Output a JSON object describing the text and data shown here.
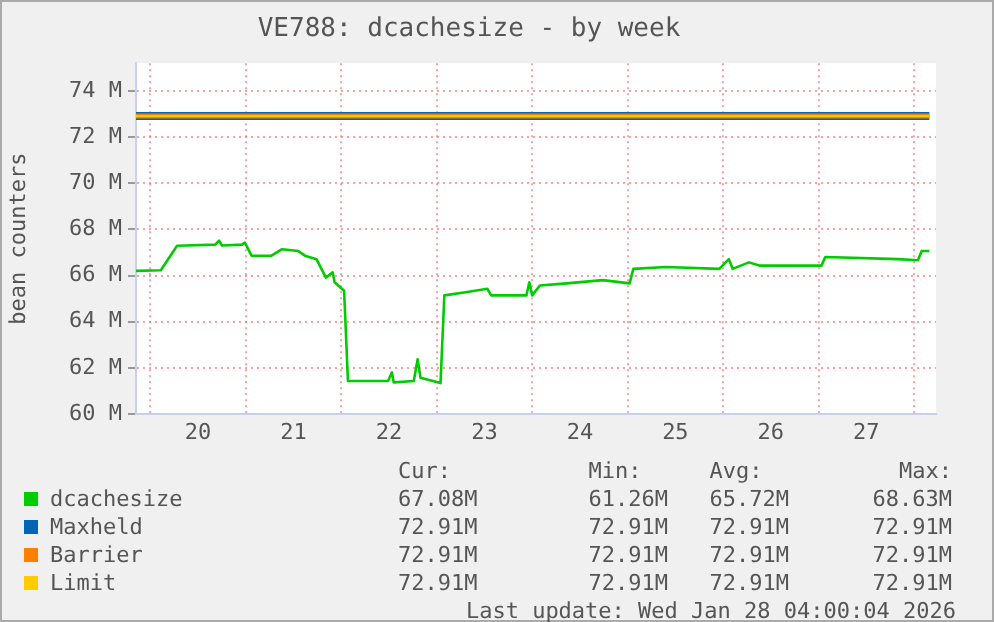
{
  "chart_data": {
    "type": "line",
    "title": "VE788: dcachesize - by week",
    "ylabel": "bean counters",
    "xlim": [
      19.85,
      28.23
    ],
    "ylim": [
      60,
      75.2
    ],
    "xticks": [
      {
        "value": 20,
        "label": null
      },
      {
        "value": 20.5,
        "label": "20"
      },
      {
        "value": 21,
        "label": null
      },
      {
        "value": 21.5,
        "label": "21"
      },
      {
        "value": 22,
        "label": null
      },
      {
        "value": 22.5,
        "label": "22"
      },
      {
        "value": 23,
        "label": null
      },
      {
        "value": 23.5,
        "label": "23"
      },
      {
        "value": 24,
        "label": null
      },
      {
        "value": 24.5,
        "label": "24"
      },
      {
        "value": 25,
        "label": null
      },
      {
        "value": 25.5,
        "label": "25"
      },
      {
        "value": 26,
        "label": null
      },
      {
        "value": 26.5,
        "label": "26"
      },
      {
        "value": 27,
        "label": null
      },
      {
        "value": 27.5,
        "label": "27"
      },
      {
        "value": 28,
        "label": null
      }
    ],
    "yticks": [
      {
        "value": 60,
        "label": "60 M"
      },
      {
        "value": 62,
        "label": "62 M"
      },
      {
        "value": 64,
        "label": "64 M"
      },
      {
        "value": 66,
        "label": "66 M"
      },
      {
        "value": 68,
        "label": "68 M"
      },
      {
        "value": 70,
        "label": "70 M"
      },
      {
        "value": 72,
        "label": "72 M"
      },
      {
        "value": 74,
        "label": "74 M"
      }
    ],
    "grid": true,
    "legend": "bottom",
    "marker": "none",
    "line_style": "solid",
    "series": [
      {
        "name": "dcachesize",
        "color": "#00cc00",
        "x": [
          19.85,
          20.11,
          20.28,
          20.68,
          20.72,
          20.75,
          20.96,
          20.99,
          21.06,
          21.27,
          21.38,
          21.55,
          21.62,
          21.74,
          21.84,
          21.91,
          21.93,
          22.03,
          22.07,
          22.49,
          22.53,
          22.55,
          22.76,
          22.8,
          22.83,
          23.04,
          23.08,
          23.32,
          23.53,
          23.57,
          23.94,
          23.97,
          24.0,
          24.08,
          24.36,
          24.74,
          25.02,
          25.06,
          25.4,
          25.96,
          26.06,
          26.1,
          26.27,
          26.38,
          27.03,
          27.07,
          27.83,
          28.04,
          28.08,
          28.16
        ],
        "values": [
          66.2,
          66.23,
          67.29,
          67.34,
          67.51,
          67.3,
          67.34,
          67.43,
          66.86,
          66.86,
          67.14,
          67.06,
          66.86,
          66.71,
          65.91,
          66.14,
          65.71,
          65.34,
          61.43,
          61.43,
          61.8,
          61.37,
          61.43,
          62.37,
          61.57,
          61.34,
          65.14,
          65.29,
          65.43,
          65.14,
          65.14,
          65.71,
          65.14,
          65.57,
          65.66,
          65.8,
          65.66,
          66.29,
          66.37,
          66.29,
          66.71,
          66.29,
          66.57,
          66.43,
          66.43,
          66.8,
          66.71,
          66.66,
          67.06,
          67.06
        ]
      },
      {
        "name": "Maxheld",
        "color": "#0066b3",
        "x": [
          19.85,
          28.16
        ],
        "values": [
          72.91,
          72.91
        ]
      },
      {
        "name": "Barrier",
        "color": "#ff8000",
        "x": [
          19.85,
          28.16
        ],
        "values": [
          72.91,
          72.91
        ]
      },
      {
        "name": "Limit",
        "color": "#ffcc00",
        "x": [
          19.85,
          28.16
        ],
        "values": [
          72.91,
          72.91
        ]
      }
    ],
    "annotations": [
      "Cur:",
      "Min:",
      "Avg:",
      "Max:",
      "67.08M",
      "61.26M",
      "65.72M",
      "68.63M",
      "72.91M",
      "72.91M",
      "72.91M",
      "72.91M",
      "72.91M",
      "72.91M",
      "72.91M",
      "72.91M",
      "72.91M",
      "72.91M",
      "72.91M",
      "72.91M",
      "Last update: Wed Jan 28 04:00:04 2026"
    ]
  }
}
